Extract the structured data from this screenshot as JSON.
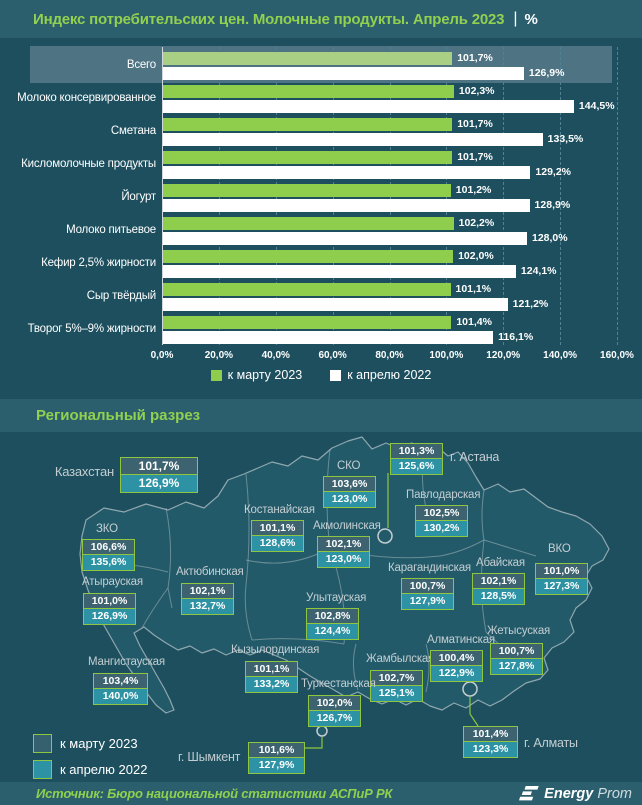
{
  "header": {
    "title": "Индекс потребительских цен. Молочные продукты. Апрель 2023",
    "unit": "%"
  },
  "chart_data": {
    "type": "bar",
    "orientation": "horizontal",
    "title": "Индекс потребительских цен. Молочные продукты. Апрель 2023, %",
    "categories": [
      "Всего",
      "Молоко консервированное",
      "Сметана",
      "Кисломолочные продукты",
      "Йогурт",
      "Молоко питьевое",
      "Кефир 2,5% жирности",
      "Сыр твёрдый",
      "Творог 5%–9% жирности"
    ],
    "series": [
      {
        "name": "к марту 2023",
        "values": [
          101.7,
          102.3,
          101.7,
          101.7,
          101.2,
          102.2,
          102.0,
          101.1,
          101.4
        ],
        "labels": [
          "101,7%",
          "102,3%",
          "101,7%",
          "101,7%",
          "101,2%",
          "102,2%",
          "102,0%",
          "101,1%",
          "101,4%"
        ]
      },
      {
        "name": "к апрелю 2022",
        "values": [
          126.9,
          144.5,
          133.5,
          129.2,
          128.9,
          128.0,
          124.1,
          121.2,
          116.1
        ],
        "labels": [
          "126,9%",
          "144,5%",
          "133,5%",
          "129,2%",
          "128,9%",
          "128,0%",
          "124,1%",
          "121,2%",
          "116,1%"
        ]
      }
    ],
    "xlim": [
      0,
      160
    ],
    "x_ticks": [
      "0,0%",
      "20,0%",
      "40,0%",
      "60,0%",
      "80,0%",
      "100,0%",
      "120,0%",
      "140,0%",
      "160,0%"
    ],
    "grid": "dashed-vertical",
    "legend_position": "bottom",
    "highlight_category": "Всего"
  },
  "regional": {
    "section_title": "Региональный разрез",
    "legend": [
      {
        "label": "к марту 2023"
      },
      {
        "label": "к апрелю 2022"
      }
    ],
    "regions": [
      {
        "key": "kz",
        "name": "Казахстан",
        "v1": "101,7%",
        "v2": "126,9%"
      },
      {
        "key": "astana",
        "name": "г. Астана",
        "v1": "101,3%",
        "v2": "125,6%"
      },
      {
        "key": "sko",
        "name": "СКО",
        "v1": "103,6%",
        "v2": "123,0%"
      },
      {
        "key": "pavlodar",
        "name": "Павлодарская",
        "v1": "102,5%",
        "v2": "130,2%"
      },
      {
        "key": "kostanay",
        "name": "Костанайская",
        "v1": "101,1%",
        "v2": "128,6%"
      },
      {
        "key": "akmola",
        "name": "Акмолинская",
        "v1": "102,1%",
        "v2": "123,0%"
      },
      {
        "key": "zko",
        "name": "ЗКО",
        "v1": "106,6%",
        "v2": "135,6%"
      },
      {
        "key": "atyrau",
        "name": "Атырауская",
        "v1": "101,0%",
        "v2": "126,9%"
      },
      {
        "key": "aktobe",
        "name": "Актюбинская",
        "v1": "102,1%",
        "v2": "132,7%"
      },
      {
        "key": "karaganda",
        "name": "Карагандинская",
        "v1": "100,7%",
        "v2": "127,9%"
      },
      {
        "key": "abay",
        "name": "Абайская",
        "v1": "102,1%",
        "v2": "128,5%"
      },
      {
        "key": "vko",
        "name": "ВКО",
        "v1": "101,0%",
        "v2": "127,3%"
      },
      {
        "key": "ulytau",
        "name": "Улытауская",
        "v1": "102,8%",
        "v2": "124,4%"
      },
      {
        "key": "mangystau",
        "name": "Мангистауская",
        "v1": "103,4%",
        "v2": "140,0%"
      },
      {
        "key": "kyzylorda",
        "name": "Кызылординская",
        "v1": "101,1%",
        "v2": "133,2%"
      },
      {
        "key": "zhambyl",
        "name": "Жамбылская",
        "v1": "102,7%",
        "v2": "125,1%"
      },
      {
        "key": "almaty_obl",
        "name": "Алматинская",
        "v1": "100,4%",
        "v2": "122,9%"
      },
      {
        "key": "zhetysu",
        "name": "Жетысуская",
        "v1": "100,7%",
        "v2": "127,8%"
      },
      {
        "key": "turkestan",
        "name": "Туркестанская",
        "v1": "102,0%",
        "v2": "126,7%"
      },
      {
        "key": "shymkent",
        "name": "г. Шымкент",
        "v1": "101,6%",
        "v2": "127,9%"
      },
      {
        "key": "almaty",
        "name": "г. Алматы",
        "v1": "101,4%",
        "v2": "123,3%"
      }
    ]
  },
  "footer": {
    "source": "Источник: Бюро национальной статистики АСПиР РК",
    "logo_bold": "Energy",
    "logo_light": "Prom"
  },
  "colors": {
    "background": "#1d4f5e",
    "band": "#2b5f6d",
    "highlight_row": "#4e7383",
    "green": "#8fce4d",
    "green_total": "#a9cf85",
    "white_bar": "#ffffff",
    "title_green": "#92d050",
    "box_border": "#8ec63f",
    "cell_dark": "#3d6370",
    "cell_teal": "#2d93a4",
    "map_stroke": "#a3b6bc"
  }
}
